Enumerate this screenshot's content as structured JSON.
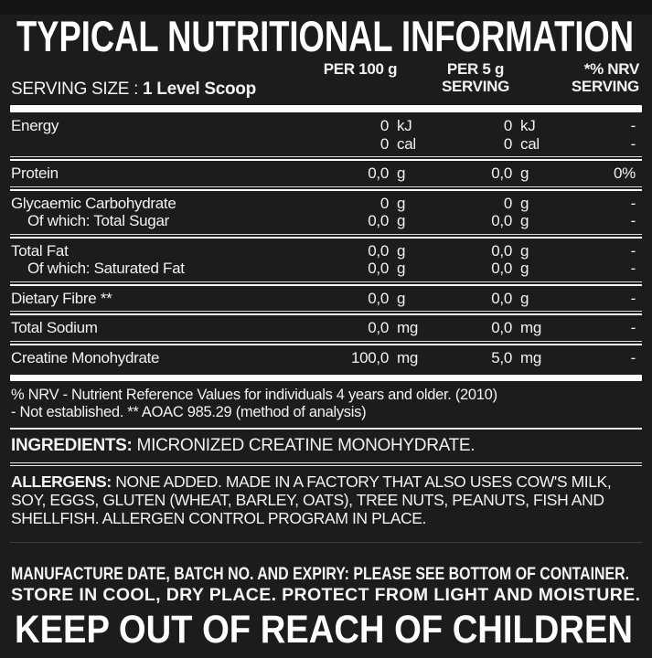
{
  "header": {
    "title": "TYPICAL NUTRITIONAL INFORMATION",
    "serving_size_label": "SERVING SIZE :",
    "serving_size_value": "1 Level Scoop",
    "columns": {
      "per100": "PER 100 g",
      "per5_line1": "PER 5 g",
      "per5_line2": "SERVING",
      "nrv_line1": "*% NRV",
      "nrv_line2": "SERVING"
    }
  },
  "table": {
    "rows": [
      {
        "label": "Energy",
        "v100": "0",
        "u100": "kJ",
        "v5": "0",
        "u5": "kJ",
        "nrv": "-"
      },
      {
        "label": "",
        "v100": "0",
        "u100": "cal",
        "v5": "0",
        "u5": "cal",
        "nrv": "-"
      },
      {
        "label": "Protein",
        "v100": "0,0",
        "u100": "g",
        "v5": "0,0",
        "u5": "g",
        "nrv": "0%"
      },
      {
        "label": "Glycaemic Carbohydrate",
        "v100": "0",
        "u100": "g",
        "v5": "0",
        "u5": "g",
        "nrv": "-"
      },
      {
        "label": "Of which: Total Sugar",
        "v100": "0,0",
        "u100": "g",
        "v5": "0,0",
        "u5": "g",
        "nrv": "-"
      },
      {
        "label": "Total Fat",
        "v100": "0,0",
        "u100": "g",
        "v5": "0,0",
        "u5": "g",
        "nrv": "-"
      },
      {
        "label": "Of which: Saturated Fat",
        "v100": "0,0",
        "u100": "g",
        "v5": "0,0",
        "u5": "g",
        "nrv": "-"
      },
      {
        "label": "Dietary Fibre **",
        "v100": "0,0",
        "u100": "g",
        "v5": "0,0",
        "u5": "g",
        "nrv": "-"
      },
      {
        "label": "Total Sodium",
        "v100": "0,0",
        "u100": "mg",
        "v5": "0,0",
        "u5": "mg",
        "nrv": "-"
      },
      {
        "label": "Creatine Monohydrate",
        "v100": "100,0",
        "u100": "mg",
        "v5": "5,0",
        "u5": "mg",
        "nrv": "-"
      }
    ]
  },
  "footnotes": {
    "line1": "% NRV - Nutrient Reference Values for individuals 4 years and older. (2010)",
    "line2": "- Not established. ** AOAC 985.29 (method of analysis)"
  },
  "ingredients": {
    "label": "INGREDIENTS:",
    "text": " MICRONIZED CREATINE MONOHYDRATE."
  },
  "allergens": {
    "label": "ALLERGENS:",
    "text": " NONE ADDED. MADE IN A FACTORY THAT ALSO USES COW'S MILK, SOY, EGGS, GLUTEN (WHEAT, BARLEY, OATS), TREE NUTS, PEANUTS, FISH AND SHELLFISH. ALLERGEN CONTROL PROGRAM IN PLACE."
  },
  "footer": {
    "line1": "MANUFACTURE DATE, BATCH NO. AND EXPIRY: PLEASE SEE BOTTOM OF CONTAINER.",
    "line2": "STORE IN COOL, DRY PLACE. PROTECT FROM LIGHT AND MOISTURE.",
    "line3": "KEEP OUT OF REACH OF CHILDREN"
  },
  "colors": {
    "background": "#1c1c1e",
    "text": "#f2f2ef",
    "rule": "#ffffff"
  }
}
